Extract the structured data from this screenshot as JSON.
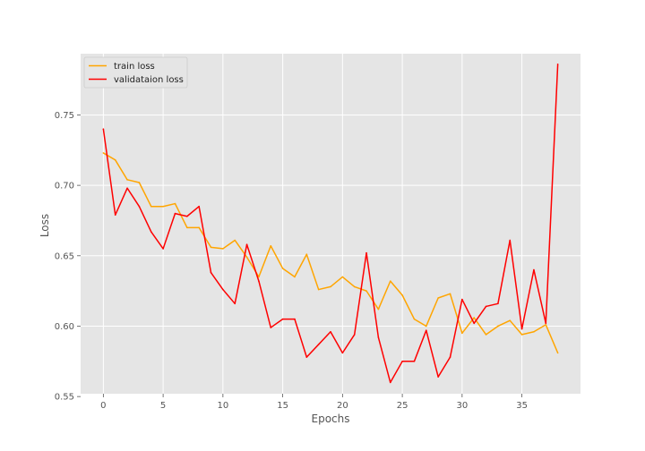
{
  "chart_data": {
    "type": "line",
    "title": "",
    "xlabel": "Epochs",
    "ylabel": "Loss",
    "xlim": [
      -1.9,
      39.9
    ],
    "ylim": [
      0.552,
      0.7935
    ],
    "x_ticks": [
      0,
      5,
      10,
      15,
      20,
      25,
      30,
      35
    ],
    "y_ticks": [
      0.55,
      0.6,
      0.65,
      0.7,
      0.75
    ],
    "y_tick_labels": [
      "0.55",
      "0.60",
      "0.65",
      "0.70",
      "0.75"
    ],
    "grid": true,
    "legend_position": "top-left",
    "x": [
      0,
      1,
      2,
      3,
      4,
      5,
      6,
      7,
      8,
      9,
      10,
      11,
      12,
      13,
      14,
      15,
      16,
      17,
      18,
      19,
      20,
      21,
      22,
      23,
      24,
      25,
      26,
      27,
      28,
      29,
      30,
      31,
      32,
      33,
      34,
      35,
      36,
      37,
      38
    ],
    "series": [
      {
        "name": "train loss",
        "color": "#ffa500",
        "values": [
          0.723,
          0.718,
          0.704,
          0.702,
          0.685,
          0.685,
          0.687,
          0.67,
          0.67,
          0.656,
          0.655,
          0.661,
          0.649,
          0.635,
          0.657,
          0.641,
          0.635,
          0.651,
          0.626,
          0.628,
          0.635,
          0.628,
          0.625,
          0.612,
          0.632,
          0.622,
          0.605,
          0.6,
          0.62,
          0.623,
          0.595,
          0.606,
          0.594,
          0.6,
          0.604,
          0.594,
          0.596,
          0.601,
          0.581
        ]
      },
      {
        "name": "validataion loss",
        "color": "#ff0000",
        "values": [
          0.74,
          0.679,
          0.698,
          0.685,
          0.667,
          0.655,
          0.68,
          0.678,
          0.685,
          0.638,
          0.626,
          0.616,
          0.658,
          0.632,
          0.599,
          0.605,
          0.605,
          0.578,
          0.587,
          0.596,
          0.581,
          0.594,
          0.652,
          0.592,
          0.56,
          0.575,
          0.575,
          0.597,
          0.564,
          0.578,
          0.619,
          0.602,
          0.614,
          0.616,
          0.661,
          0.598,
          0.64,
          0.602,
          0.786
        ]
      }
    ]
  }
}
